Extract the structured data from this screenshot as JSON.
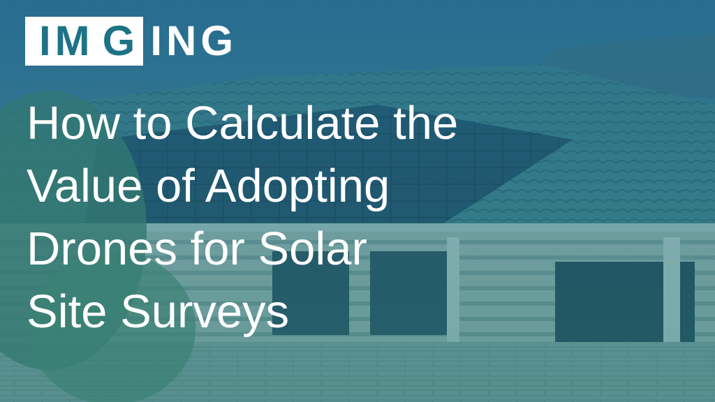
{
  "brand": {
    "logo_text": "IMGING",
    "logo_part1": "IM",
    "logo_part2": "G",
    "logo_part3": "ING"
  },
  "headline": {
    "lines": [
      "How to Calculate the",
      "Value of Adopting",
      "Drones for Solar",
      "Site Surveys"
    ]
  },
  "colors": {
    "overlay": "#22708a",
    "logo_teal": "#1d7385",
    "text": "#ffffff"
  }
}
